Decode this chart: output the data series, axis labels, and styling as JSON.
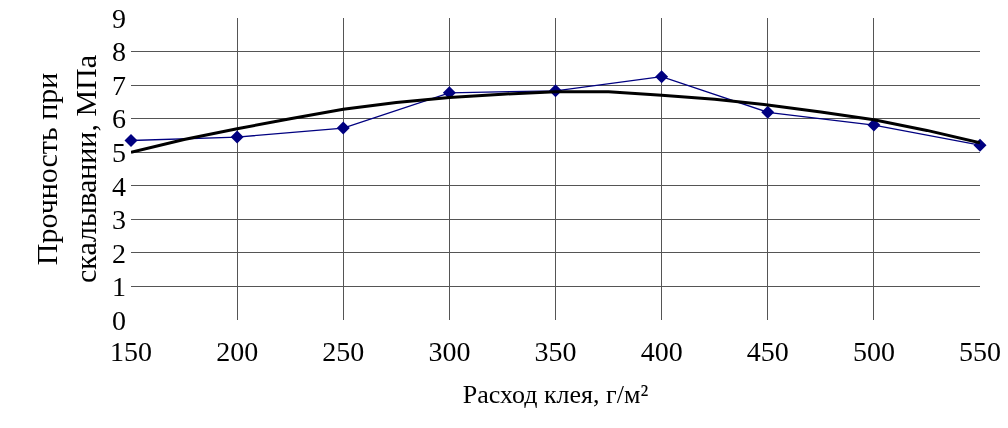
{
  "chart_data": {
    "type": "line",
    "xlabel": "Расход клея, г/м²",
    "ylabel": "Прочность при скалывании, МПа",
    "x": [
      150,
      200,
      250,
      300,
      350,
      400,
      450,
      500,
      550
    ],
    "series": [
      {
        "color": "#000080",
        "marker": "diamond",
        "values": [
          5.35,
          5.45,
          5.72,
          6.77,
          6.83,
          7.25,
          6.19,
          5.81,
          5.21
        ]
      },
      {
        "type": "line",
        "color": "#000000",
        "marker": "none",
        "x": [
          150,
          175,
          200,
          225,
          250,
          275,
          300,
          325,
          350,
          375,
          400,
          425,
          450,
          475,
          500,
          525,
          550
        ],
        "values": [
          5.0,
          5.38,
          5.7,
          6.0,
          6.28,
          6.48,
          6.63,
          6.73,
          6.8,
          6.8,
          6.7,
          6.58,
          6.41,
          6.2,
          5.97,
          5.65,
          5.28
        ]
      }
    ],
    "xlim": [
      150,
      550
    ],
    "xticks": [
      150,
      200,
      250,
      300,
      350,
      400,
      450,
      500,
      550
    ],
    "ylim": [
      0,
      9
    ],
    "yticks": [
      0,
      1,
      2,
      3,
      4,
      5,
      6,
      7,
      8,
      9
    ],
    "grid": true
  }
}
